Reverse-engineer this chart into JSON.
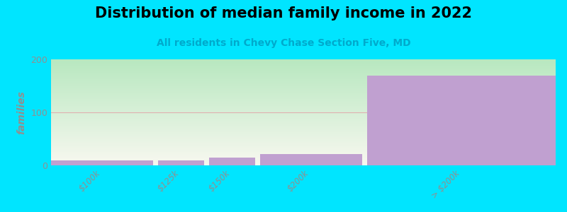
{
  "title": "Distribution of median family income in 2022",
  "subtitle": "All residents in Chevy Chase Section Five, MD",
  "categories": [
    "$100k",
    "$125k",
    "$150k",
    "$200k",
    "> $200k"
  ],
  "bar_lefts": [
    0,
    1.05,
    1.55,
    2.05,
    3.1
  ],
  "bar_widths": [
    1.0,
    0.45,
    0.45,
    1.0,
    1.85
  ],
  "values": [
    10,
    10,
    15,
    22,
    170
  ],
  "bar_color": "#c0a0d0",
  "background_color": "#00e5ff",
  "plot_bg_color_tl": "#b8e8c0",
  "plot_bg_color_br": "#f8f8f0",
  "ylabel": "families",
  "ylim": [
    0,
    200
  ],
  "yticks": [
    0,
    100,
    200
  ],
  "title_fontsize": 15,
  "subtitle_fontsize": 10,
  "tick_color": "#909090",
  "grid_color": "#e0b0b0",
  "title_color": "#000000",
  "subtitle_color": "#00aacc",
  "xtick_positions": [
    0.5,
    1.275,
    1.775,
    2.55,
    4.025
  ],
  "xtick_labels": [
    "$100k",
    "$125k",
    "$150k",
    "$200k",
    "> $200k"
  ]
}
